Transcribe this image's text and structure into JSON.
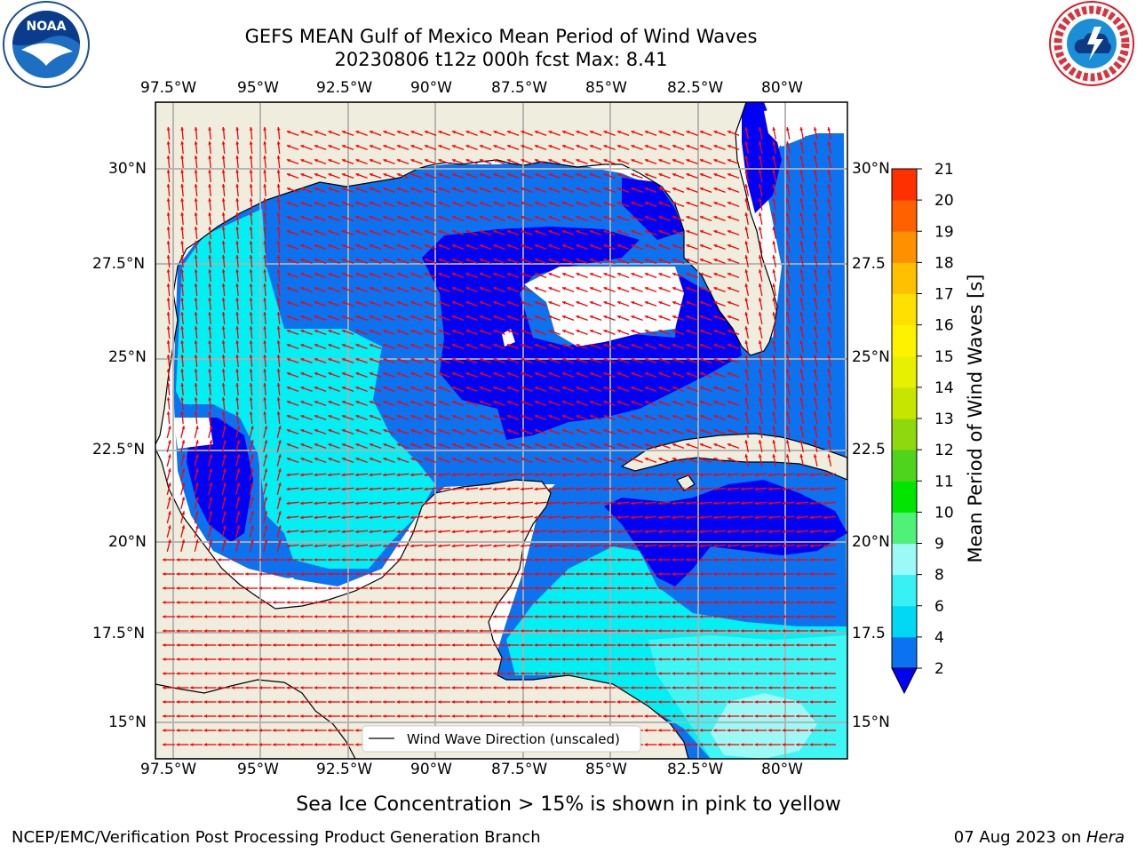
{
  "title_line1": "GEFS MEAN Gulf of Mexico Mean Period of Wind Waves",
  "title_line2": "20230806 t12z 000h fcst   Max: 8.41",
  "lon_labels": [
    "97.5°W",
    "95°W",
    "92.5°W",
    "90°W",
    "87.5°W",
    "85°W",
    "82.5°W",
    "80°W"
  ],
  "lat_labels_left": [
    "30°N",
    "27.5°N",
    "25°N",
    "22.5°N",
    "20°N",
    "17.5°N",
    "15°N"
  ],
  "lat_labels_right": [
    "30°N",
    "27.5",
    "25°N",
    "22.5",
    "20°N",
    "17.5",
    "15°N"
  ],
  "legend_label": "Wind Wave Direction (unscaled)",
  "colorbar": {
    "label": "Mean Period of Wind Waves [s]",
    "ticks": [
      "2",
      "4",
      "6",
      "8",
      "9",
      "10",
      "11",
      "12",
      "13",
      "14",
      "15",
      "16",
      "17",
      "18",
      "19",
      "20",
      "21"
    ],
    "colors": [
      "#0b72f0",
      "#00d8f4",
      "#37f1f5",
      "#9bfaf6",
      "#4df277",
      "#00e600",
      "#4ed41d",
      "#8fd80e",
      "#c6e600",
      "#e6f000",
      "#fff200",
      "#ffe000",
      "#ffc000",
      "#ff9000",
      "#ff6000",
      "#ff3000",
      "#ff0000"
    ]
  },
  "note": "Sea Ice Concentration > 15% is shown in pink to yellow",
  "footer_left": "NCEP/EMC/Verification Post Processing Product Generation Branch",
  "footer_right_prefix": "07 Aug 2023 on ",
  "footer_right_host": "Hera",
  "logos": {
    "left": {
      "text": "NOAA",
      "icon": "noaa-logo"
    },
    "right": {
      "icon": "nws-logo",
      "ring_text": "NATIONAL WEATHER SERVICE"
    }
  },
  "palette": {
    "land": "#efeddd",
    "shade_lt2": "#0000f5",
    "shade_2_4": "#0b72f0",
    "shade_4_6": "#00f0f4",
    "shade_6_8": "#3df7f5",
    "shade_8_9": "#9bfaf6",
    "arrows": "#ff0000",
    "grid": "#b0b0b0"
  }
}
